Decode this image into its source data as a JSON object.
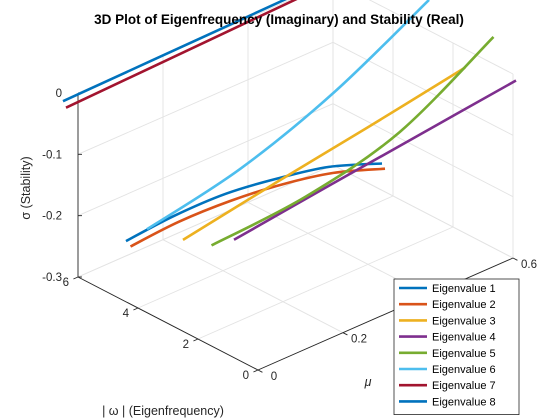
{
  "chart_data": {
    "type": "line3d",
    "title": "3D Plot of Eigenfrequency (Imaginary) and Stability (Real)",
    "xlabel": "μ",
    "ylabel": "| ω | (Eigenfrequency)",
    "zlabel": "σ (Stability)",
    "xlim": [
      0,
      0.6
    ],
    "ylim": [
      0,
      6
    ],
    "zlim": [
      -0.3,
      0
    ],
    "xticks": [
      "0",
      "0.2",
      "0.6"
    ],
    "yticks": [
      "0",
      "2",
      "4",
      "6"
    ],
    "zticks": [
      "0",
      "-0.1",
      "-0.2",
      "-0.3"
    ],
    "grid": true,
    "legend_position": "bottom-right",
    "series": [
      {
        "name": "Eigenvalue 1",
        "color": "#0072BD",
        "points": [
          [
            0.0,
            4.4,
            -0.201
          ],
          [
            0.1,
            4.2,
            -0.185
          ],
          [
            0.2,
            3.9,
            -0.172
          ],
          [
            0.3,
            3.6,
            -0.17
          ],
          [
            0.4,
            3.3,
            -0.174
          ],
          [
            0.5,
            2.95,
            -0.19
          ]
        ]
      },
      {
        "name": "Eigenvalue 2",
        "color": "#D95319",
        "points": [
          [
            0.0,
            4.25,
            -0.206
          ],
          [
            0.1,
            4.05,
            -0.191
          ],
          [
            0.2,
            3.75,
            -0.18
          ],
          [
            0.3,
            3.45,
            -0.176
          ],
          [
            0.4,
            3.15,
            -0.18
          ],
          [
            0.5,
            2.85,
            -0.196
          ]
        ]
      },
      {
        "name": "Eigenvalue 3",
        "color": "#EDB120",
        "points": [
          [
            0.0,
            2.5,
            -0.151
          ],
          [
            0.2,
            2.2,
            -0.11
          ],
          [
            0.4,
            1.9,
            -0.071
          ],
          [
            0.6,
            1.6,
            -0.03
          ]
        ]
      },
      {
        "name": "Eigenvalue 4",
        "color": "#7E2F8E",
        "points": [
          [
            0.0,
            0.8,
            -0.108
          ],
          [
            0.2,
            0.5,
            -0.074
          ],
          [
            0.4,
            0.2,
            -0.041
          ],
          [
            0.6,
            -0.1,
            -0.008
          ]
        ]
      },
      {
        "name": "Eigenvalue 5",
        "color": "#77AC30",
        "points": [
          [
            0.0,
            1.55,
            -0.136
          ],
          [
            0.2,
            1.25,
            -0.11
          ],
          [
            0.4,
            0.95,
            -0.058
          ],
          [
            0.6,
            0.65,
            0.044
          ]
        ]
      },
      {
        "name": "Eigenvalue 6",
        "color": "#4DBEEE",
        "points": [
          [
            0.0,
            3.7,
            -0.164
          ],
          [
            0.2,
            3.4,
            -0.118
          ],
          [
            0.4,
            3.1,
            -0.046
          ],
          [
            0.6,
            2.8,
            0.05
          ]
        ]
      },
      {
        "name": "Eigenvalue 7",
        "color": "#A2142F",
        "points": [
          [
            0.0,
            6.4,
            -0.034
          ],
          [
            0.3,
            6.0,
            -0.008
          ],
          [
            0.6,
            5.6,
            0.018
          ]
        ]
      },
      {
        "name": "Eigenvalue 8",
        "color": "#0072BD",
        "points": [
          [
            0.0,
            6.5,
            -0.026
          ],
          [
            0.3,
            6.1,
            -0.003
          ],
          [
            0.6,
            5.7,
            0.02
          ]
        ]
      }
    ]
  }
}
